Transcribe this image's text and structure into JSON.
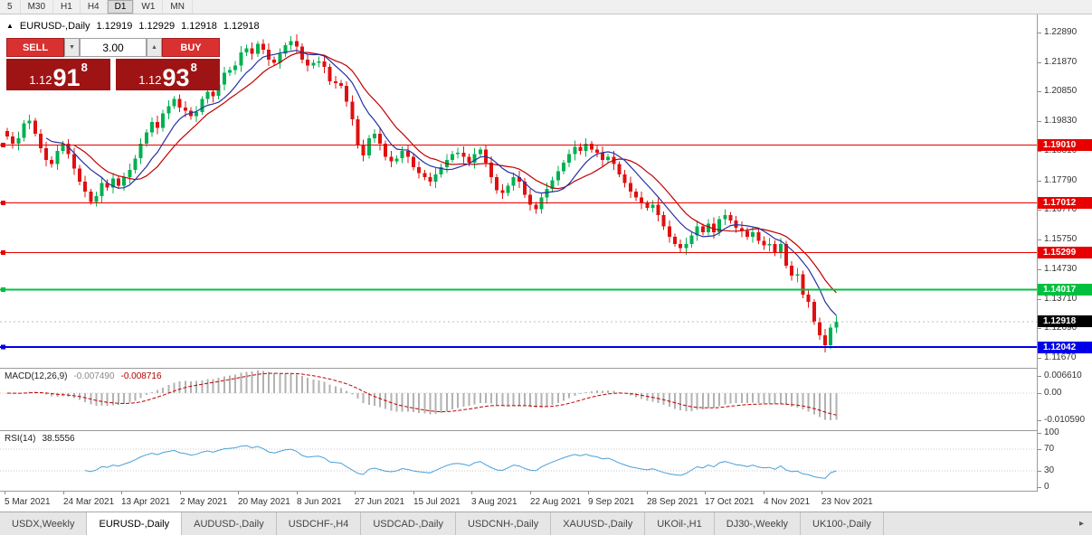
{
  "toolbar": {
    "period_buttons": [
      "5",
      "M30",
      "H1",
      "H4",
      "D1",
      "W1",
      "MN"
    ],
    "active": "D1"
  },
  "chart_header": {
    "symbol": "EURUSD-,Daily",
    "open": "1.12919",
    "high": "1.12929",
    "low": "1.12918",
    "close": "1.12918"
  },
  "trade_panel": {
    "sell_label": "SELL",
    "buy_label": "BUY",
    "volume": "3.00",
    "sell_price": {
      "prefix": "1.12",
      "big": "91",
      "sup": "8"
    },
    "buy_price": {
      "prefix": "1.12",
      "big": "93",
      "sup": "8"
    }
  },
  "icons": {
    "collapse": "▲",
    "volume_down": "▼",
    "volume_up": "▲",
    "tab_scroll_right": "▸"
  },
  "colors": {
    "bull": "#00b050",
    "bear": "#e01010",
    "ma_fast": "#2432a0",
    "ma_slow": "#c00000",
    "macd_histogram": "#b2b2b2",
    "macd_signal": "#c00000",
    "rsi_line": "#4a9fd8",
    "grid_dotted": "#c8c8c8"
  },
  "chart_data": {
    "type": "candlestick",
    "symbol": "EURUSD-",
    "timeframe": "Daily",
    "y_axis": {
      "visible_max": 1.2289,
      "visible_min": 1.1167,
      "tick_labels": [
        "1.22890",
        "1.21870",
        "1.20850",
        "1.19830",
        "1.18810",
        "1.17790",
        "1.16770",
        "1.15750",
        "1.14730",
        "1.13710",
        "1.12690",
        "1.11670"
      ]
    },
    "x_axis": {
      "tick_labels": [
        "5 Mar 2021",
        "24 Mar 2021",
        "13 Apr 2021",
        "2 May 2021",
        "20 May 2021",
        "8 Jun 2021",
        "27 Jun 2021",
        "15 Jul 2021",
        "3 Aug 2021",
        "22 Aug 2021",
        "9 Sep 2021",
        "28 Sep 2021",
        "17 Oct 2021",
        "4 Nov 2021",
        "23 Nov 2021"
      ]
    },
    "levels": [
      {
        "price": 1.1901,
        "label": "1.19010",
        "color": "#e80000",
        "line_color": "#e80000",
        "width": 1,
        "style": "solid"
      },
      {
        "price": 1.17012,
        "label": "1.17012",
        "color": "#e80000",
        "line_color": "#e80000",
        "width": 1,
        "style": "solid"
      },
      {
        "price": 1.15299,
        "label": "1.15299",
        "color": "#e80000",
        "line_color": "#e80000",
        "width": 1,
        "style": "solid"
      },
      {
        "price": 1.14017,
        "label": "1.14017",
        "color": "#00c040",
        "line_color": "#00c040",
        "width": 2,
        "style": "solid"
      },
      {
        "price": 1.12918,
        "label": "1.12918",
        "color": "#000000",
        "line_color": "#bdbdbd",
        "width": 1,
        "style": "dashed"
      },
      {
        "price": 1.12042,
        "label": "1.12042",
        "color": "#0000e8",
        "line_color": "#0000e8",
        "width": 2,
        "style": "solid"
      }
    ],
    "moving_averages": [
      {
        "period": 13,
        "color_key": "ma_slow"
      },
      {
        "period": 8,
        "color_key": "ma_fast"
      }
    ],
    "indicators": {
      "macd": {
        "label": "MACD(12,26,9)",
        "value_main": "-0.007490",
        "value_signal": "-0.008716",
        "params": [
          12,
          26,
          9
        ],
        "axis_labels": [
          "0.006610",
          "0.00",
          "-0.010590"
        ]
      },
      "rsi": {
        "label": "RSI(14)",
        "value": "38.5556",
        "params": [
          14
        ],
        "axis_labels": [
          "100",
          "70",
          "30",
          "0"
        ],
        "guides": [
          70,
          30
        ]
      }
    },
    "last_price": 1.12918,
    "candles": [
      [
        1.195,
        1.196,
        1.192,
        1.193
      ],
      [
        1.193,
        1.1946,
        1.1889,
        1.1905
      ],
      [
        1.1905,
        1.1947,
        1.1883,
        1.1925
      ],
      [
        1.1925,
        1.1987,
        1.1913,
        1.1975
      ],
      [
        1.1975,
        1.2005,
        1.1955,
        1.1985
      ],
      [
        1.1985,
        1.1995,
        1.193,
        1.194
      ],
      [
        1.194,
        1.1956,
        1.1874,
        1.189
      ],
      [
        1.189,
        1.1912,
        1.1828,
        1.185
      ],
      [
        1.185,
        1.1862,
        1.1823,
        1.1835
      ],
      [
        1.1835,
        1.19,
        1.1815,
        1.188
      ],
      [
        1.188,
        1.1915,
        1.187,
        1.1905
      ],
      [
        1.1905,
        1.1921,
        1.1854,
        1.187
      ],
      [
        1.187,
        1.1892,
        1.1798,
        1.182
      ],
      [
        1.182,
        1.1832,
        1.1763,
        1.1775
      ],
      [
        1.1775,
        1.1795,
        1.172,
        1.174
      ],
      [
        1.174,
        1.175,
        1.1695,
        1.1705
      ],
      [
        1.1705,
        1.1741,
        1.1689,
        1.1725
      ],
      [
        1.1725,
        1.1792,
        1.1703,
        1.177
      ],
      [
        1.177,
        1.1782,
        1.1743,
        1.1755
      ],
      [
        1.1755,
        1.1805,
        1.1735,
        1.1785
      ],
      [
        1.1785,
        1.1795,
        1.175,
        1.176
      ],
      [
        1.176,
        1.1806,
        1.1744,
        1.179
      ],
      [
        1.179,
        1.1837,
        1.1768,
        1.1815
      ],
      [
        1.1815,
        1.1867,
        1.1803,
        1.1855
      ],
      [
        1.1855,
        1.1925,
        1.1835,
        1.1905
      ],
      [
        1.1905,
        1.1955,
        1.1895,
        1.1945
      ],
      [
        1.1945,
        1.1996,
        1.1929,
        1.198
      ],
      [
        1.198,
        1.2002,
        1.1938,
        1.196
      ],
      [
        1.196,
        1.2022,
        1.1948,
        1.201
      ],
      [
        1.201,
        1.2055,
        1.199,
        1.2035
      ],
      [
        1.2035,
        1.207,
        1.2025,
        1.206
      ],
      [
        1.206,
        1.2076,
        1.2014,
        1.203
      ],
      [
        1.203,
        1.2052,
        1.1998,
        1.202
      ],
      [
        1.202,
        1.2032,
        1.1988,
        1.2
      ],
      [
        1.2,
        1.2035,
        1.198,
        1.2015
      ],
      [
        1.2015,
        1.207,
        1.2005,
        1.206
      ],
      [
        1.206,
        1.2101,
        1.2044,
        1.2085
      ],
      [
        1.2085,
        1.2107,
        1.2048,
        1.207
      ],
      [
        1.207,
        1.2122,
        1.2058,
        1.211
      ],
      [
        1.211,
        1.217,
        1.209,
        1.215
      ],
      [
        1.215,
        1.217,
        1.214,
        1.216
      ],
      [
        1.216,
        1.2191,
        1.2144,
        1.2175
      ],
      [
        1.2175,
        1.2242,
        1.2153,
        1.222
      ],
      [
        1.222,
        1.2247,
        1.2208,
        1.2235
      ],
      [
        1.2235,
        1.2255,
        1.2195,
        1.2215
      ],
      [
        1.2215,
        1.226,
        1.2205,
        1.225
      ],
      [
        1.225,
        1.2266,
        1.2214,
        1.223
      ],
      [
        1.223,
        1.2252,
        1.2173,
        1.2195
      ],
      [
        1.2195,
        1.2207,
        1.2173,
        1.2185
      ],
      [
        1.2185,
        1.2235,
        1.2165,
        1.2215
      ],
      [
        1.2215,
        1.2255,
        1.2205,
        1.2245
      ],
      [
        1.2245,
        1.2276,
        1.2229,
        1.226
      ],
      [
        1.226,
        1.2282,
        1.2218,
        1.224
      ],
      [
        1.224,
        1.2252,
        1.2183,
        1.2195
      ],
      [
        1.2195,
        1.2215,
        1.2155,
        1.2175
      ],
      [
        1.2175,
        1.2195,
        1.2165,
        1.2185
      ],
      [
        1.2185,
        1.2206,
        1.2169,
        1.219
      ],
      [
        1.219,
        1.2212,
        1.2148,
        1.217
      ],
      [
        1.217,
        1.2182,
        1.2108,
        1.212
      ],
      [
        1.212,
        1.214,
        1.2095,
        1.2115
      ],
      [
        1.2115,
        1.2125,
        1.2095,
        1.2105
      ],
      [
        1.2105,
        1.2121,
        1.2034,
        1.205
      ],
      [
        1.205,
        1.2072,
        1.1968,
        1.199
      ],
      [
        1.199,
        1.2002,
        1.1888,
        1.19
      ],
      [
        1.19,
        1.192,
        1.1845,
        1.1865
      ],
      [
        1.1865,
        1.1935,
        1.1855,
        1.1925
      ],
      [
        1.1925,
        1.1956,
        1.1909,
        1.194
      ],
      [
        1.194,
        1.1962,
        1.1883,
        1.1905
      ],
      [
        1.1905,
        1.1917,
        1.1848,
        1.186
      ],
      [
        1.186,
        1.188,
        1.1825,
        1.1845
      ],
      [
        1.1845,
        1.1865,
        1.1835,
        1.1855
      ],
      [
        1.1855,
        1.1896,
        1.1839,
        1.188
      ],
      [
        1.188,
        1.1902,
        1.1838,
        1.186
      ],
      [
        1.186,
        1.1872,
        1.1813,
        1.1825
      ],
      [
        1.1825,
        1.1845,
        1.1785,
        1.1805
      ],
      [
        1.1805,
        1.1815,
        1.178,
        1.179
      ],
      [
        1.179,
        1.1806,
        1.1759,
        1.1775
      ],
      [
        1.1775,
        1.1822,
        1.1753,
        1.18
      ],
      [
        1.18,
        1.1837,
        1.1788,
        1.1825
      ],
      [
        1.1825,
        1.187,
        1.1805,
        1.185
      ],
      [
        1.185,
        1.188,
        1.184,
        1.187
      ],
      [
        1.187,
        1.1891,
        1.1854,
        1.1875
      ],
      [
        1.1875,
        1.1897,
        1.1838,
        1.186
      ],
      [
        1.186,
        1.1872,
        1.1828,
        1.184
      ],
      [
        1.184,
        1.189,
        1.182,
        1.187
      ],
      [
        1.187,
        1.1895,
        1.186,
        1.1885
      ],
      [
        1.1885,
        1.1901,
        1.1824,
        1.184
      ],
      [
        1.184,
        1.1862,
        1.1768,
        1.179
      ],
      [
        1.179,
        1.1802,
        1.1733,
        1.1745
      ],
      [
        1.1745,
        1.1765,
        1.1715,
        1.1735
      ],
      [
        1.1735,
        1.177,
        1.1725,
        1.176
      ],
      [
        1.176,
        1.1806,
        1.1744,
        1.179
      ],
      [
        1.179,
        1.1812,
        1.1753,
        1.1775
      ],
      [
        1.1775,
        1.1787,
        1.1718,
        1.173
      ],
      [
        1.173,
        1.175,
        1.1675,
        1.1695
      ],
      [
        1.1695,
        1.1705,
        1.1664,
        1.168
      ],
      [
        1.168,
        1.1736,
        1.1664,
        1.172
      ],
      [
        1.172,
        1.1772,
        1.1698,
        1.175
      ],
      [
        1.175,
        1.1792,
        1.1738,
        1.178
      ],
      [
        1.178,
        1.183,
        1.176,
        1.181
      ],
      [
        1.181,
        1.185,
        1.18,
        1.184
      ],
      [
        1.184,
        1.1886,
        1.1824,
        1.187
      ],
      [
        1.187,
        1.1917,
        1.1848,
        1.1895
      ],
      [
        1.1895,
        1.1907,
        1.1868,
        1.188
      ],
      [
        1.188,
        1.1925,
        1.186,
        1.1905
      ],
      [
        1.1905,
        1.1915,
        1.1875,
        1.1885
      ],
      [
        1.1885,
        1.1901,
        1.1859,
        1.1875
      ],
      [
        1.1875,
        1.1897,
        1.1828,
        1.185
      ],
      [
        1.185,
        1.1872,
        1.1838,
        1.186
      ],
      [
        1.186,
        1.188,
        1.1815,
        1.1835
      ],
      [
        1.1835,
        1.1845,
        1.179,
        1.18
      ],
      [
        1.18,
        1.1816,
        1.1754,
        1.177
      ],
      [
        1.177,
        1.1792,
        1.1718,
        1.174
      ],
      [
        1.174,
        1.1752,
        1.1708,
        1.172
      ],
      [
        1.172,
        1.174,
        1.168,
        1.17
      ],
      [
        1.17,
        1.171,
        1.1675,
        1.1685
      ],
      [
        1.1685,
        1.1711,
        1.1669,
        1.1695
      ],
      [
        1.1695,
        1.1717,
        1.1638,
        1.166
      ],
      [
        1.166,
        1.1672,
        1.1608,
        1.162
      ],
      [
        1.162,
        1.164,
        1.1565,
        1.1585
      ],
      [
        1.1585,
        1.1595,
        1.155,
        1.156
      ],
      [
        1.156,
        1.1576,
        1.1529,
        1.1545
      ],
      [
        1.1545,
        1.1582,
        1.1523,
        1.156
      ],
      [
        1.156,
        1.1602,
        1.1548,
        1.159
      ],
      [
        1.159,
        1.164,
        1.157,
        1.162
      ],
      [
        1.162,
        1.163,
        1.159,
        1.16
      ],
      [
        1.16,
        1.1646,
        1.1584,
        1.163
      ],
      [
        1.163,
        1.1652,
        1.1578,
        1.16
      ],
      [
        1.16,
        1.1657,
        1.1588,
        1.1645
      ],
      [
        1.1645,
        1.168,
        1.1625,
        1.166
      ],
      [
        1.166,
        1.167,
        1.163,
        1.164
      ],
      [
        1.164,
        1.1656,
        1.1599,
        1.1615
      ],
      [
        1.1615,
        1.1637,
        1.1583,
        1.1605
      ],
      [
        1.1605,
        1.1617,
        1.1573,
        1.1585
      ],
      [
        1.1585,
        1.162,
        1.1565,
        1.16
      ],
      [
        1.16,
        1.161,
        1.156,
        1.157
      ],
      [
        1.157,
        1.1586,
        1.1539,
        1.1555
      ],
      [
        1.1555,
        1.1582,
        1.1533,
        1.156
      ],
      [
        1.156,
        1.1572,
        1.1518,
        1.153
      ],
      [
        1.153,
        1.158,
        1.151,
        1.156
      ],
      [
        1.156,
        1.157,
        1.1475,
        1.1485
      ],
      [
        1.1485,
        1.1501,
        1.1434,
        1.145
      ],
      [
        1.145,
        1.1477,
        1.1428,
        1.1455
      ],
      [
        1.1455,
        1.1467,
        1.1373,
        1.1385
      ],
      [
        1.1385,
        1.1405,
        1.134,
        1.136
      ],
      [
        1.136,
        1.137,
        1.128,
        1.129
      ],
      [
        1.129,
        1.1306,
        1.1229,
        1.1245
      ],
      [
        1.1245,
        1.1267,
        1.1186,
        1.121
      ],
      [
        1.121,
        1.1284,
        1.1198,
        1.1272
      ],
      [
        1.1272,
        1.1312,
        1.1252,
        1.1292
      ]
    ]
  },
  "tabs": {
    "items": [
      "USDX,Weekly",
      "EURUSD-,Daily",
      "AUDUSD-,Daily",
      "USDCHF-,H4",
      "USDCAD-,Daily",
      "USDCNH-,Daily",
      "XAUUSD-,Daily",
      "UKOil-,H1",
      "DJ30-,Weekly",
      "UK100-,Daily"
    ],
    "active_index": 1
  }
}
